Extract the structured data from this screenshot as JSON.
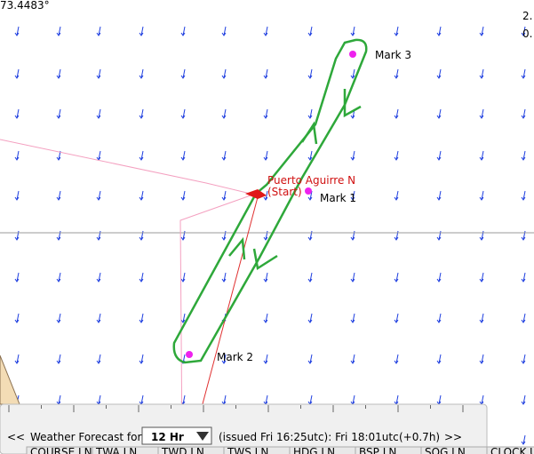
{
  "coords": {
    "latitude": "73.4483°",
    "right_top": [
      "2.",
      "0."
    ]
  },
  "marks": [
    {
      "label": "Mark 3"
    },
    {
      "label": "Puerto Aguirre N",
      "sub": "(Start)"
    },
    {
      "label": "Mark 1"
    },
    {
      "label": "Mark 2"
    }
  ],
  "forecast": {
    "prev": "<<",
    "label": "Weather Forecast for",
    "period": "12 Hr",
    "issued": "(issued Fri 16:25utc): Fri 18:01utc",
    "offset": "(+0.7h)",
    "next": ">>"
  },
  "table_headers": [
    "COURSE LN",
    "TWA LN",
    "TWD LN",
    "TWS LN",
    "HDG LN",
    "BSP LN",
    "SOG LN",
    "CLOCK UTC"
  ]
}
